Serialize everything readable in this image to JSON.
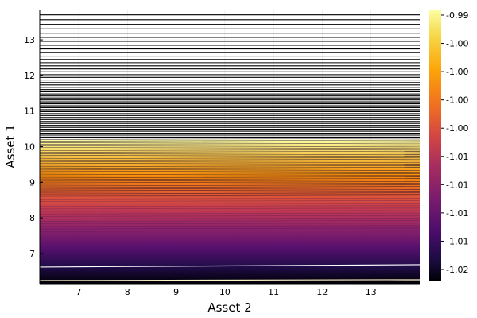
{
  "chart_data": {
    "type": "contour",
    "xlabel": "Asset 2",
    "ylabel": "Asset 1",
    "xlim": [
      6.2,
      14.0
    ],
    "ylim": [
      6.15,
      13.85
    ],
    "xticks": [
      7,
      8,
      9,
      10,
      11,
      12,
      13
    ],
    "yticks": [
      7,
      8,
      9,
      10,
      11,
      12,
      13
    ],
    "grid": true,
    "colormap": "inferno",
    "colorbar": {
      "tick_labels": [
        "-0.99",
        "-1.00",
        "-1.00",
        "-1.00",
        "-1.00",
        "-1.01",
        "-1.01",
        "-1.01",
        "-1.01",
        "-1.02"
      ]
    }
  }
}
